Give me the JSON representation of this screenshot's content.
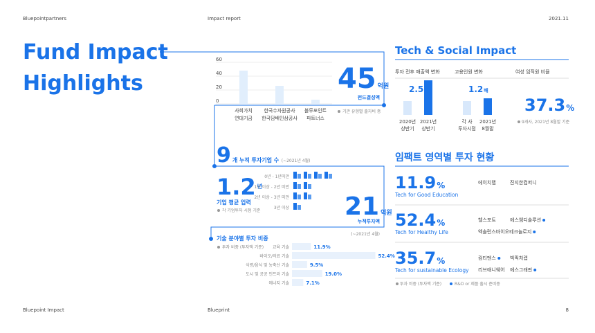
{
  "header": {
    "left": "Bluepointpartners",
    "center": "Impact report",
    "right": "2021.11"
  },
  "footer": {
    "left": "Bluepoint Impact",
    "center": "Blueprint",
    "right": "8"
  },
  "title": [
    "Fund Impact",
    "Highlights"
  ],
  "fund_chart": {
    "type": "bar",
    "categories": [
      [
        "사회가치",
        "연대기금"
      ],
      [
        "한국수자원공사",
        "한국담배인삼공사"
      ],
      [
        "블루포인트",
        "파트너스"
      ]
    ],
    "values": [
      48,
      26,
      6
    ],
    "ylim": [
      0,
      60
    ],
    "yticks": [
      0,
      20,
      40,
      60
    ],
    "color": "#e1eefc"
  },
  "fund": {
    "value": 45,
    "unit": "억원",
    "label": "펀드결성액",
    "note": "기관 유형별 출자비 중"
  },
  "companies": {
    "value": 9,
    "label": "개 누적 투자기업 수",
    "period": "(~2021년 4월)"
  },
  "age": {
    "value": 1.2,
    "unit": "년",
    "label": "기업 평균 업력",
    "note": "각 기업투자 시점 기준",
    "distribution": [
      {
        "label": "0년 - 1년미만",
        "count": 4
      },
      {
        "label": "1년 이상 - 2년 미만",
        "count": 2
      },
      {
        "label": "2년 이상 - 3년 미만",
        "count": 2
      },
      {
        "label": "3년 이상",
        "count": 1
      }
    ]
  },
  "investment": {
    "value": 21,
    "unit": "억원",
    "label": "누적투자액",
    "period": "(~2021년 4월)"
  },
  "tech_share": {
    "title": "기술 분야별 투자 비중",
    "note": "투자 비중 (투자액 기준)",
    "categories": [
      "교육 기술",
      "바이오/의료 기술",
      "식량/음식 및 농축산 기술",
      "도시 및 공공 인프라 기술",
      "에너지 기술"
    ],
    "values": [
      11.9,
      52.4,
      9.5,
      19.0,
      7.1
    ],
    "value_labels": [
      "11.9%",
      "52.4%",
      "9.5%",
      "19.0%",
      "7.1%"
    ],
    "color": "#e8f1fc"
  },
  "tech_social": {
    "title": "Tech & Social Impact",
    "sales": {
      "title": "투자 전후 매출액 변화",
      "multiplier": 2.5,
      "unit": "배",
      "categories": [
        [
          "2020년",
          "상반기"
        ],
        [
          "2021년",
          "상반기"
        ]
      ],
      "values": [
        1,
        2.5
      ]
    },
    "employment": {
      "title": "고용인원 변화",
      "multiplier": 1.2,
      "unit": "배",
      "categories": [
        [
          "각 사",
          "투자시점"
        ],
        [
          "2021년",
          "8월말"
        ]
      ],
      "values": [
        1,
        1.2
      ]
    },
    "women": {
      "title": "여성 임직원 비율",
      "value": 37.3,
      "unit": "%",
      "note": "9개사, 2021년 8월말 기준"
    }
  },
  "impact": {
    "title": "임팩트 영역별 투자 현황",
    "rows": [
      {
        "value": 11.9,
        "unit": "%",
        "label": "Tech for Good Education",
        "companies": [
          {
            "name": "에이치랩",
            "rnd": false
          },
          {
            "name": "진지한컴퍼니",
            "rnd": false
          }
        ]
      },
      {
        "value": 52.4,
        "unit": "%",
        "label": "Tech for Healthy Life",
        "companies": [
          {
            "name": "헬스포트",
            "rnd": false
          },
          {
            "name": "에스엠디솔루션",
            "rnd": true
          },
          {
            "name": "엑솔런스바이오테크놀로지",
            "rnd": true
          }
        ]
      },
      {
        "value": 35.7,
        "unit": "%",
        "label": "Tech for sustainable Ecology",
        "companies": [
          {
            "name": "컴티멘스",
            "rnd": true
          },
          {
            "name": "빅픽처랩",
            "rnd": false
          },
          {
            "name": "리브애니웨어",
            "rnd": false
          },
          {
            "name": "에스그래핀",
            "rnd": true
          }
        ]
      }
    ],
    "legend": [
      "투자 비중 (투자액 기준)",
      "R&D or 제품 출시 준비중"
    ]
  }
}
